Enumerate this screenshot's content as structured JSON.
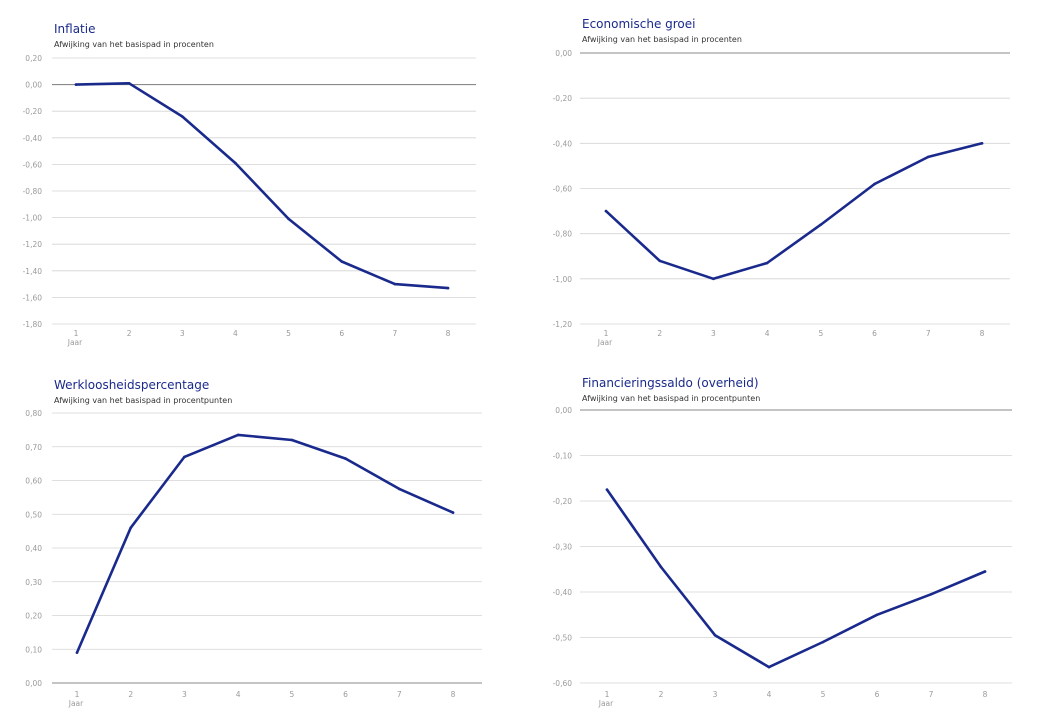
{
  "chart_data": [
    {
      "type": "line",
      "title": "Inflatie",
      "subtitle": "Afwijking van het basispad in procenten",
      "x_first_label_extra": "Jaar",
      "x": [
        "1",
        "2",
        "3",
        "4",
        "5",
        "6",
        "7",
        "8"
      ],
      "y_ticks": [
        "0,20",
        "0,00",
        "-0,20",
        "-0,40",
        "-0,60",
        "-0,80",
        "-1,00",
        "-1,20",
        "-1,40",
        "-1,60",
        "-1,80"
      ],
      "ylim": [
        -1.8,
        0.2
      ],
      "baseline": 0,
      "series": [
        {
          "values": [
            0.0,
            0.01,
            -0.24,
            -0.59,
            -1.01,
            -1.33,
            -1.5,
            -1.53
          ]
        }
      ],
      "line_color": "#1a2a8c",
      "grid": true
    },
    {
      "type": "line",
      "title": "Economische groei",
      "subtitle": "Afwijking van het basispad in procenten",
      "x_first_label_extra": "Jaar",
      "x": [
        "1",
        "2",
        "3",
        "4",
        "5",
        "6",
        "7",
        "8"
      ],
      "y_ticks": [
        "0,00",
        "-0,20",
        "-0,40",
        "-0,60",
        "-0,80",
        "-1,00",
        "-1,20"
      ],
      "ylim": [
        -1.2,
        0.0
      ],
      "baseline": 0,
      "series": [
        {
          "values": [
            -0.7,
            -0.92,
            -1.0,
            -0.93,
            -0.76,
            -0.58,
            -0.46,
            -0.4
          ]
        }
      ],
      "line_color": "#1a2a8c",
      "grid": true
    },
    {
      "type": "line",
      "title": "Werkloosheidspercentage",
      "subtitle": "Afwijking van het basispad in procentpunten",
      "x_first_label_extra": "Jaar",
      "x": [
        "1",
        "2",
        "3",
        "4",
        "5",
        "6",
        "7",
        "8"
      ],
      "y_ticks": [
        "0,80",
        "0,70",
        "0,60",
        "0,50",
        "0,40",
        "0,30",
        "0,20",
        "0,10",
        "0,00"
      ],
      "ylim": [
        0.0,
        0.8
      ],
      "baseline": 0,
      "series": [
        {
          "values": [
            0.09,
            0.46,
            0.67,
            0.735,
            0.72,
            0.665,
            0.575,
            0.505
          ]
        }
      ],
      "line_color": "#1a2a8c",
      "grid": true
    },
    {
      "type": "line",
      "title": "Financieringssaldo (overheid)",
      "subtitle": "Afwijking van het basispad in procentpunten",
      "x_first_label_extra": "Jaar",
      "x": [
        "1",
        "2",
        "3",
        "4",
        "5",
        "6",
        "7",
        "8"
      ],
      "y_ticks": [
        "0,00",
        "-0,10",
        "-0,20",
        "-0,30",
        "-0,40",
        "-0,50",
        "-0,60"
      ],
      "ylim": [
        -0.6,
        0.0
      ],
      "baseline": 0,
      "series": [
        {
          "values": [
            -0.175,
            -0.345,
            -0.495,
            -0.565,
            -0.51,
            -0.45,
            -0.405,
            -0.355
          ]
        }
      ],
      "line_color": "#1a2a8c",
      "grid": true
    }
  ]
}
